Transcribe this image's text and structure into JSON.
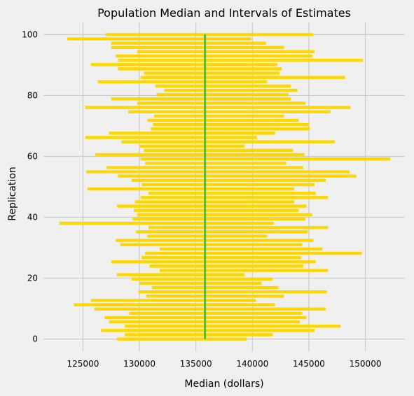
{
  "chart_data": {
    "type": "interval",
    "title": "Population Median and Intervals of Estimates",
    "xlabel": "Median (dollars)",
    "ylabel": "Replication",
    "xlim": [
      121500,
      153500
    ],
    "ylim": [
      -4,
      104
    ],
    "xticks": [
      125000,
      130000,
      135000,
      140000,
      145000,
      150000
    ],
    "yticks": [
      0,
      20,
      40,
      60,
      80,
      100
    ],
    "grid": true,
    "bar_color": "#ffd700",
    "reference_line": {
      "x": 135800,
      "color": "#2ecc40"
    },
    "intervals": [
      [
        128000,
        139500
      ],
      [
        128700,
        141800
      ],
      [
        126600,
        145500
      ],
      [
        128700,
        147800
      ],
      [
        127300,
        144200
      ],
      [
        126900,
        144800
      ],
      [
        129100,
        144400
      ],
      [
        126000,
        146500
      ],
      [
        124200,
        142000
      ],
      [
        125700,
        140300
      ],
      [
        130600,
        142800
      ],
      [
        129900,
        146600
      ],
      [
        131100,
        142300
      ],
      [
        130000,
        140800
      ],
      [
        129300,
        141800
      ],
      [
        128000,
        139300
      ],
      [
        131800,
        146700
      ],
      [
        130900,
        144500
      ],
      [
        127500,
        145600
      ],
      [
        130200,
        144300
      ],
      [
        130500,
        149700
      ],
      [
        131800,
        146200
      ],
      [
        128300,
        144400
      ],
      [
        127900,
        145400
      ],
      [
        130700,
        141300
      ],
      [
        129700,
        144900
      ],
      [
        130800,
        146700
      ],
      [
        122900,
        141900
      ],
      [
        129400,
        144700
      ],
      [
        129800,
        145300
      ],
      [
        129500,
        144100
      ],
      [
        128000,
        144800
      ],
      [
        129600,
        143700
      ],
      [
        130100,
        146700
      ],
      [
        130800,
        145600
      ],
      [
        125400,
        143700
      ],
      [
        130200,
        145500
      ],
      [
        129300,
        146500
      ],
      [
        128100,
        149200
      ],
      [
        125300,
        148600
      ],
      [
        127100,
        144500
      ],
      [
        130500,
        143000
      ],
      [
        130100,
        152200
      ],
      [
        126100,
        144600
      ],
      [
        130400,
        143600
      ],
      [
        130000,
        139300
      ],
      [
        128400,
        147300
      ],
      [
        125200,
        140400
      ],
      [
        127300,
        142000
      ],
      [
        131000,
        145100
      ],
      [
        131200,
        145000
      ],
      [
        130700,
        144100
      ],
      [
        131300,
        142800
      ],
      [
        129000,
        146900
      ],
      [
        125200,
        148700
      ],
      [
        129800,
        144700
      ],
      [
        127500,
        143400
      ],
      [
        131500,
        143200
      ],
      [
        132200,
        144000
      ],
      [
        131400,
        143400
      ],
      [
        126300,
        141300
      ],
      [
        130100,
        148200
      ],
      [
        130400,
        142400
      ],
      [
        128100,
        142600
      ],
      [
        125700,
        142200
      ],
      [
        128100,
        149800
      ],
      [
        127900,
        145300
      ],
      [
        129800,
        145500
      ],
      [
        127500,
        142800
      ],
      [
        127500,
        141200
      ],
      [
        123600,
        139900
      ],
      [
        127000,
        145400
      ]
    ]
  }
}
